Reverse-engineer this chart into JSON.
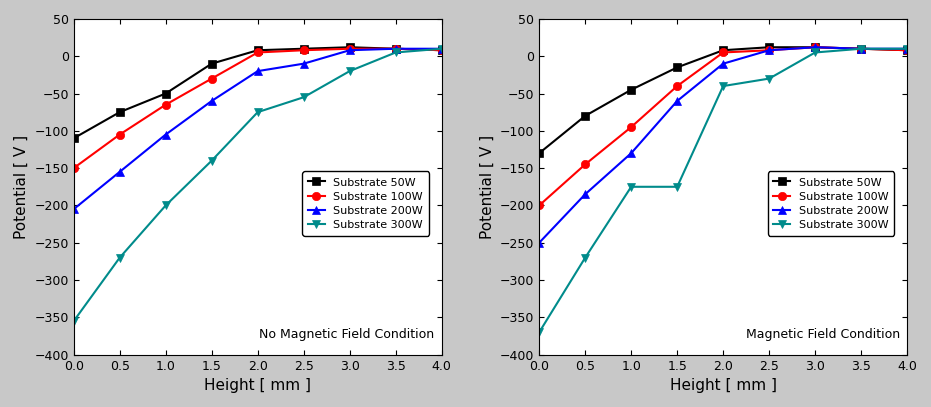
{
  "left_plot": {
    "title": "No Magnetic Field Condition",
    "series": [
      {
        "label": "Substrate 50W",
        "color": "#000000",
        "marker": "s",
        "x": [
          0.0,
          0.5,
          1.0,
          1.5,
          2.0,
          2.5,
          3.0,
          3.5,
          4.0
        ],
        "y": [
          -110,
          -75,
          -50,
          -10,
          8,
          10,
          12,
          10,
          8
        ]
      },
      {
        "label": "Substrate 100W",
        "color": "#ff0000",
        "marker": "o",
        "x": [
          0.0,
          0.5,
          1.0,
          1.5,
          2.0,
          2.5,
          3.0,
          3.5,
          4.0
        ],
        "y": [
          -150,
          -105,
          -65,
          -30,
          5,
          8,
          10,
          10,
          8
        ]
      },
      {
        "label": "Substrate 200W",
        "color": "#0000ff",
        "marker": "^",
        "x": [
          0.0,
          0.5,
          1.0,
          1.5,
          2.0,
          2.5,
          3.0,
          3.5,
          4.0
        ],
        "y": [
          -205,
          -155,
          -105,
          -60,
          -20,
          -10,
          8,
          10,
          10
        ]
      },
      {
        "label": "Substrate 300W",
        "color": "#008b8b",
        "marker": "v",
        "x": [
          0.0,
          0.5,
          1.0,
          1.5,
          2.0,
          2.5,
          3.0,
          3.5,
          4.0
        ],
        "y": [
          -355,
          -270,
          -200,
          -140,
          -75,
          -55,
          -20,
          5,
          10
        ]
      }
    ]
  },
  "right_plot": {
    "title": "Magnetic Field Condition",
    "series": [
      {
        "label": "Substrate 50W",
        "color": "#000000",
        "marker": "s",
        "x": [
          0.0,
          0.5,
          1.0,
          1.5,
          2.0,
          2.5,
          3.0,
          3.5,
          4.0
        ],
        "y": [
          -130,
          -80,
          -45,
          -15,
          8,
          12,
          12,
          10,
          8
        ]
      },
      {
        "label": "Substrate 100W",
        "color": "#ff0000",
        "marker": "o",
        "x": [
          0.0,
          0.5,
          1.0,
          1.5,
          2.0,
          2.5,
          3.0,
          3.5,
          4.0
        ],
        "y": [
          -200,
          -145,
          -95,
          -40,
          5,
          8,
          12,
          10,
          8
        ]
      },
      {
        "label": "Substrate 200W",
        "color": "#0000ff",
        "marker": "^",
        "x": [
          0.0,
          0.5,
          1.0,
          1.5,
          2.0,
          2.5,
          3.0,
          3.5,
          4.0
        ],
        "y": [
          -250,
          -185,
          -130,
          -60,
          -10,
          8,
          12,
          10,
          10
        ]
      },
      {
        "label": "Substrate 300W",
        "color": "#008b8b",
        "marker": "v",
        "x": [
          0.0,
          0.5,
          1.0,
          1.5,
          2.0,
          2.5,
          3.0,
          3.5,
          4.0
        ],
        "y": [
          -370,
          -270,
          -175,
          -175,
          -40,
          -30,
          5,
          10,
          10
        ]
      }
    ]
  },
  "xlabel": "Height [ mm ]",
  "ylabel": "Potential [ V ]",
  "xlim": [
    0.0,
    4.0
  ],
  "ylim": [
    -400,
    50
  ],
  "xticks": [
    0.0,
    0.5,
    1.0,
    1.5,
    2.0,
    2.5,
    3.0,
    3.5,
    4.0
  ],
  "yticks": [
    -400,
    -350,
    -300,
    -250,
    -200,
    -150,
    -100,
    -50,
    0,
    50
  ],
  "legend_loc": "lower right",
  "plot_bg_color": "#ffffff",
  "fig_bg_color": "#c8c8c8",
  "markersize": 6,
  "linewidth": 1.5,
  "title_fontsize": 9,
  "label_fontsize": 11,
  "tick_fontsize": 9,
  "legend_fontsize": 8
}
